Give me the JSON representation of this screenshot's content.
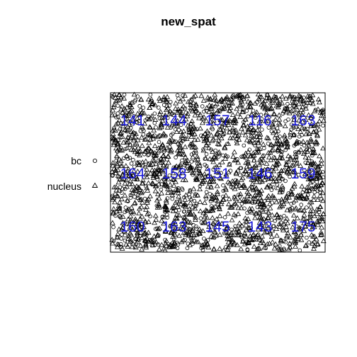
{
  "chart_data": {
    "type": "scatter",
    "title": "new_spat",
    "xlabel": "",
    "ylabel": "",
    "axes_shown": false,
    "grid": false,
    "legend": {
      "placement": "left",
      "entries": [
        {
          "label": "bc",
          "marker": "circle-icon"
        },
        {
          "label": "nucleus",
          "marker": "triangle-icon"
        }
      ]
    },
    "series": [
      {
        "name": "bc",
        "marker": "circle-icon"
      },
      {
        "name": "nucleus",
        "marker": "triangle-icon"
      }
    ],
    "grid_labels": {
      "rows": 3,
      "cols": 5,
      "values": [
        [
          141,
          144,
          157,
          116,
          163
        ],
        [
          164,
          158,
          151,
          146,
          159
        ],
        [
          160,
          163,
          145,
          143,
          175
        ]
      ]
    },
    "colors": {
      "point": "#000000",
      "label": "#1a1adb",
      "frame": "#000000"
    }
  }
}
